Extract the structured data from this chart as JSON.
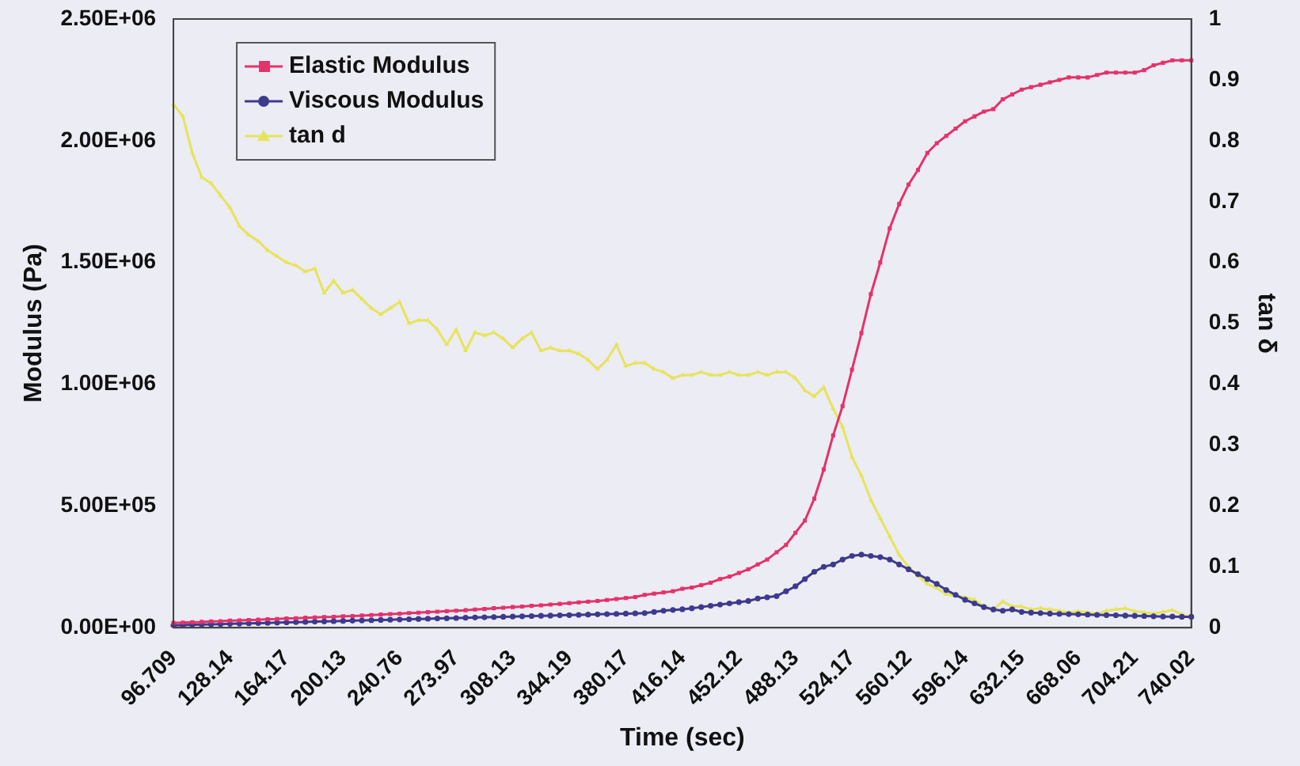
{
  "chart_data": {
    "type": "line",
    "xlabel": "Time (sec)",
    "ylabel": "Modulus (Pa)",
    "y2label": "tan δ",
    "categories": [
      "96.709",
      null,
      null,
      null,
      null,
      null,
      "128.14",
      null,
      null,
      null,
      null,
      null,
      "164.17",
      null,
      null,
      null,
      null,
      null,
      "200.13",
      null,
      null,
      null,
      null,
      null,
      "240.76",
      null,
      null,
      null,
      null,
      null,
      "273.97",
      null,
      null,
      null,
      null,
      null,
      "308.13",
      null,
      null,
      null,
      null,
      null,
      "344.19",
      null,
      null,
      null,
      null,
      null,
      "380.17",
      null,
      null,
      null,
      null,
      null,
      "416.14",
      null,
      null,
      null,
      null,
      null,
      "452.12",
      null,
      null,
      null,
      null,
      null,
      "488.13",
      null,
      null,
      null,
      null,
      null,
      "524.17",
      null,
      null,
      null,
      null,
      null,
      "560.12",
      null,
      null,
      null,
      null,
      null,
      "596.14",
      null,
      null,
      null,
      null,
      null,
      "632.15",
      null,
      null,
      null,
      null,
      null,
      "668.06",
      null,
      null,
      null,
      null,
      null,
      "704.21",
      null,
      null,
      null,
      null,
      null,
      "740.02"
    ],
    "series": [
      {
        "name": "Elastic Modulus",
        "color": "#e3336b",
        "marker": "square",
        "values": [
          20000,
          21000,
          23000,
          24000,
          26000,
          27000,
          29000,
          30000,
          32000,
          33000,
          35000,
          36000,
          38000,
          39000,
          41000,
          42000,
          44000,
          45000,
          47000,
          48000,
          50000,
          52000,
          54000,
          56000,
          58000,
          60000,
          62000,
          64000,
          66000,
          68000,
          70000,
          72000,
          75000,
          77000,
          80000,
          82000,
          85000,
          87000,
          90000,
          92000,
          95000,
          98000,
          101000,
          104000,
          107000,
          110000,
          114000,
          118000,
          122000,
          126000,
          135000,
          140000,
          145000,
          150000,
          160000,
          165000,
          175000,
          185000,
          200000,
          210000,
          225000,
          240000,
          260000,
          280000,
          310000,
          340000,
          390000,
          440000,
          530000,
          650000,
          790000,
          910000,
          1060000,
          1210000,
          1370000,
          1500000,
          1640000,
          1740000,
          1820000,
          1880000,
          1950000,
          1990000,
          2020000,
          2050000,
          2080000,
          2100000,
          2120000,
          2130000,
          2170000,
          2190000,
          2210000,
          2220000,
          2230000,
          2240000,
          2250000,
          2260000,
          2260000,
          2260000,
          2270000,
          2280000,
          2280000,
          2280000,
          2280000,
          2290000,
          2310000,
          2320000,
          2330000,
          2330000,
          2330000
        ]
      },
      {
        "name": "Viscous Modulus",
        "color": "#3d3a8e",
        "marker": "circle",
        "values": [
          10000,
          11000,
          12000,
          13000,
          14000,
          15000,
          16000,
          17000,
          18000,
          19000,
          20000,
          21000,
          22000,
          23000,
          24000,
          25000,
          26000,
          27000,
          28000,
          29000,
          30000,
          31000,
          32000,
          33000,
          34000,
          35000,
          36000,
          37000,
          38000,
          39000,
          40000,
          41000,
          42000,
          43000,
          44000,
          45000,
          46000,
          47000,
          48000,
          49000,
          50000,
          51000,
          52000,
          53000,
          54000,
          55000,
          56000,
          57000,
          58000,
          59000,
          60000,
          65000,
          70000,
          73000,
          76000,
          80000,
          85000,
          90000,
          95000,
          100000,
          105000,
          110000,
          120000,
          125000,
          130000,
          150000,
          170000,
          200000,
          230000,
          250000,
          260000,
          280000,
          295000,
          300000,
          295000,
          290000,
          280000,
          260000,
          240000,
          220000,
          200000,
          180000,
          155000,
          135000,
          115000,
          100000,
          85000,
          75000,
          70000,
          75000,
          65000,
          62000,
          60000,
          58000,
          57000,
          56000,
          55000,
          54000,
          53000,
          52000,
          51000,
          50000,
          49000,
          48000,
          47000,
          46000,
          46000,
          45000,
          45000
        ]
      },
      {
        "name": "tan d",
        "color": "#e6e45a",
        "marker": "triangle",
        "axis": "y2",
        "values": [
          0.86,
          0.84,
          0.78,
          0.74,
          0.73,
          0.71,
          0.69,
          0.66,
          0.645,
          0.635,
          0.62,
          0.61,
          0.6,
          0.595,
          0.585,
          0.59,
          0.55,
          0.57,
          0.55,
          0.555,
          0.54,
          0.525,
          0.515,
          0.525,
          0.535,
          0.5,
          0.505,
          0.505,
          0.49,
          0.465,
          0.49,
          0.455,
          0.485,
          0.48,
          0.485,
          0.475,
          0.46,
          0.475,
          0.485,
          0.455,
          0.46,
          0.455,
          0.455,
          0.45,
          0.44,
          0.425,
          0.44,
          0.465,
          0.43,
          0.435,
          0.435,
          0.425,
          0.42,
          0.41,
          0.415,
          0.415,
          0.42,
          0.415,
          0.415,
          0.42,
          0.415,
          0.415,
          0.42,
          0.415,
          0.42,
          0.42,
          0.41,
          0.39,
          0.38,
          0.395,
          0.36,
          0.33,
          0.28,
          0.25,
          0.21,
          0.18,
          0.15,
          0.12,
          0.1,
          0.085,
          0.072,
          0.065,
          0.055,
          0.052,
          0.05,
          0.046,
          0.035,
          0.03,
          0.043,
          0.035,
          0.035,
          0.03,
          0.032,
          0.03,
          0.028,
          0.025,
          0.027,
          0.025,
          0.023,
          0.028,
          0.03,
          0.032,
          0.027,
          0.025,
          0.023,
          0.026,
          0.029,
          0.022,
          0.017
        ]
      }
    ],
    "ylim": [
      0,
      2500000
    ],
    "yticks": [
      {
        "value": 0,
        "label": "0.00E+00"
      },
      {
        "value": 500000,
        "label": "5.00E+05"
      },
      {
        "value": 1000000,
        "label": "1.00E+06"
      },
      {
        "value": 1500000,
        "label": "1.50E+06"
      },
      {
        "value": 2000000,
        "label": "2.00E+06"
      },
      {
        "value": 2500000,
        "label": "2.50E+06"
      }
    ],
    "y2lim": [
      0,
      1
    ],
    "y2ticks": [
      0,
      0.1,
      0.2,
      0.3,
      0.4,
      0.5,
      0.6,
      0.7,
      0.8,
      0.9,
      1
    ],
    "legend": "top left",
    "grid": false
  }
}
